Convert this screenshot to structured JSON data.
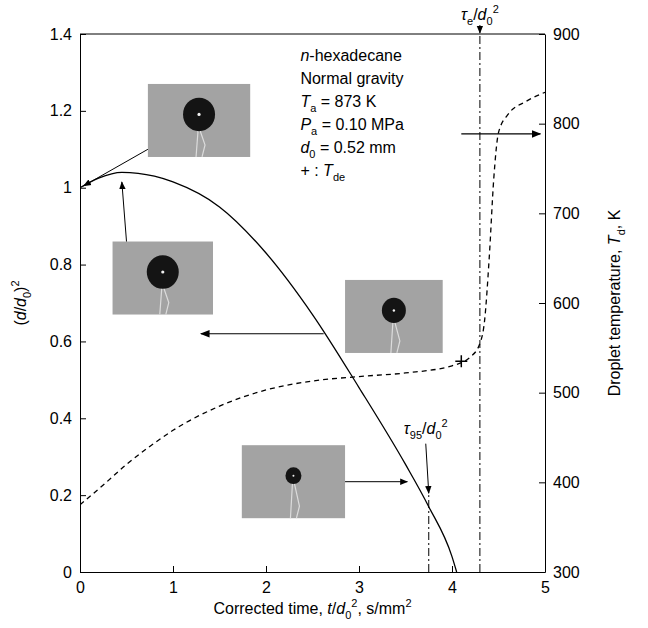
{
  "chart_data": {
    "type": "line",
    "xlabel": [
      {
        "text": "Corrected time, "
      },
      {
        "text": "t",
        "style": "italic"
      },
      {
        "text": "/"
      },
      {
        "text": "d",
        "style": "italic"
      },
      {
        "text": "0",
        "style": "sub"
      },
      {
        "text": "2",
        "style": "sup"
      },
      {
        "text": ", s/mm"
      },
      {
        "text": "2",
        "style": "sup"
      }
    ],
    "ylabel": [
      {
        "text": "("
      },
      {
        "text": "d",
        "style": "italic"
      },
      {
        "text": "/"
      },
      {
        "text": "d",
        "style": "italic"
      },
      {
        "text": "0",
        "style": "sub"
      },
      {
        "text": ")"
      },
      {
        "text": "2",
        "style": "sup"
      }
    ],
    "y2label": [
      {
        "text": "Droplet temperature, "
      },
      {
        "text": "T",
        "style": "italic"
      },
      {
        "text": "d",
        "style": "sub"
      },
      {
        "text": ", K"
      }
    ],
    "xlim": [
      0,
      5
    ],
    "xticks": [
      0,
      1,
      2,
      3,
      4,
      5
    ],
    "ylim": [
      0,
      1.4
    ],
    "yticks": [
      0,
      0.2,
      0.4,
      0.6,
      0.8,
      1,
      1.2,
      1.4
    ],
    "y2lim": [
      300,
      900
    ],
    "y2ticks": [
      300,
      400,
      500,
      600,
      700,
      800,
      900
    ],
    "series": [
      {
        "type": "line",
        "color": "#000000",
        "line_style": "solid",
        "x": [
          0,
          0.2,
          0.45,
          0.8,
          1.0,
          1.5,
          2.0,
          2.5,
          3.0,
          3.5,
          3.75,
          4.0,
          4.05
        ],
        "values": [
          1.0,
          1.025,
          1.04,
          1.03,
          1.015,
          0.95,
          0.83,
          0.67,
          0.48,
          0.28,
          0.17,
          0.04,
          0
        ]
      },
      {
        "type": "line",
        "color": "#000000",
        "line_style": "dashed",
        "axis": "y2",
        "x": [
          0,
          0.25,
          0.5,
          0.75,
          1.0,
          1.5,
          2.0,
          2.5,
          3.0,
          3.5,
          4.0,
          4.2,
          4.3,
          4.35,
          4.4,
          4.45,
          4.5,
          4.6,
          4.8,
          5.0
        ],
        "values": [
          375,
          397,
          420,
          440,
          458,
          485,
          503,
          513,
          518,
          522,
          530,
          540,
          555,
          580,
          650,
          740,
          790,
          810,
          825,
          835
        ]
      },
      {
        "type": "scatter",
        "color": "#000000",
        "marker": "plus",
        "axis": "y2",
        "x": [
          4.1
        ],
        "values": [
          535
        ]
      }
    ],
    "vlines": [
      {
        "x": 3.75,
        "y": [
          0,
          0.2
        ],
        "label": [
          {
            "text": "τ",
            "style": "italic"
          },
          {
            "text": "95",
            "style": "sub"
          },
          {
            "text": "/"
          },
          {
            "text": "d",
            "style": "italic"
          },
          {
            "text": "0",
            "style": "sub"
          },
          {
            "text": "2",
            "style": "sup"
          }
        ]
      },
      {
        "x": 4.3,
        "label": [
          {
            "text": "τ",
            "style": "italic"
          },
          {
            "text": "e",
            "style": "sub"
          },
          {
            "text": "/"
          },
          {
            "text": "d",
            "style": "italic"
          },
          {
            "text": "0",
            "style": "sub"
          },
          {
            "text": "2",
            "style": "sup"
          }
        ]
      }
    ],
    "annotations": [
      {
        "segments": [
          {
            "text": "n",
            "style": "italic"
          },
          {
            "text": "-hexadecane"
          }
        ]
      },
      {
        "segments": [
          {
            "text": "Normal gravity"
          }
        ]
      },
      {
        "segments": [
          {
            "text": "T",
            "style": "italic"
          },
          {
            "text": "a",
            "style": "sub"
          },
          {
            "text": " = 873 K"
          }
        ]
      },
      {
        "segments": [
          {
            "text": "P",
            "style": "italic"
          },
          {
            "text": "a",
            "style": "sub"
          },
          {
            "text": " = 0.10 MPa"
          }
        ]
      },
      {
        "segments": [
          {
            "text": "d",
            "style": "italic"
          },
          {
            "text": "0",
            "style": "sub"
          },
          {
            "text": " = 0.52 mm"
          }
        ]
      },
      {
        "segments": [
          {
            "text": "+ : "
          },
          {
            "text": "T",
            "style": "italic"
          },
          {
            "text": "de",
            "style": "sub"
          }
        ]
      }
    ]
  }
}
